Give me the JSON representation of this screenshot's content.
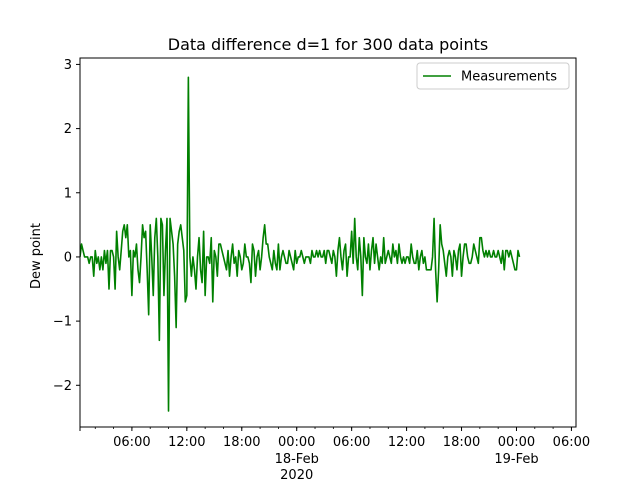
{
  "chart_data": {
    "type": "line",
    "title": "Data difference d=1 for 300 data points",
    "xlabel": "",
    "ylabel": "Dew point",
    "xlim": [
      "2020-02-17 00:20",
      "2020-02-19 06:30"
    ],
    "ylim": [
      -2.65,
      3.1
    ],
    "grid": false,
    "legend": {
      "placement": "upper right"
    },
    "x_ticks": [
      {
        "at": "2020-02-17 06:00",
        "label": "06:00",
        "sub": ""
      },
      {
        "at": "2020-02-17 12:00",
        "label": "12:00",
        "sub": ""
      },
      {
        "at": "2020-02-17 18:00",
        "label": "18:00",
        "sub": ""
      },
      {
        "at": "2020-02-18 00:00",
        "label": "00:00",
        "sub": "18-Feb\n2020"
      },
      {
        "at": "2020-02-18 06:00",
        "label": "06:00",
        "sub": ""
      },
      {
        "at": "2020-02-18 12:00",
        "label": "12:00",
        "sub": ""
      },
      {
        "at": "2020-02-18 18:00",
        "label": "18:00",
        "sub": ""
      },
      {
        "at": "2020-02-19 00:00",
        "label": "00:00",
        "sub": "19-Feb"
      },
      {
        "at": "2020-02-19 06:00",
        "label": "06:00",
        "sub": ""
      }
    ],
    "y_ticks": [
      {
        "value": 3,
        "label": "3"
      },
      {
        "value": 2,
        "label": "2"
      },
      {
        "value": 1,
        "label": "1"
      },
      {
        "value": 0,
        "label": "0"
      },
      {
        "value": -1,
        "label": "−1"
      },
      {
        "value": -2,
        "label": "−2"
      }
    ],
    "series": [
      {
        "name": "Measurements",
        "color": "#008000",
        "start": "2020-02-17 00:20",
        "interval_minutes": 10,
        "values": [
          0.0,
          0.2,
          0.1,
          0.0,
          0.0,
          0.0,
          -0.1,
          0.0,
          0.0,
          -0.3,
          0.1,
          -0.1,
          0.0,
          -0.2,
          0.0,
          -0.2,
          0.1,
          -0.1,
          0.1,
          -0.5,
          0.1,
          0.1,
          0.0,
          -0.5,
          0.4,
          0.0,
          -0.2,
          0.1,
          0.4,
          0.5,
          0.3,
          0.5,
          0.0,
          0.1,
          -0.6,
          0.1,
          0.0,
          0.2,
          -0.2,
          -0.4,
          0.0,
          0.5,
          0.3,
          0.4,
          -0.2,
          -0.9,
          0.5,
          0.0,
          -0.6,
          0.3,
          0.6,
          0.0,
          -1.3,
          0.6,
          0.5,
          -0.6,
          0.1,
          0.6,
          -2.4,
          0.6,
          0.4,
          0.2,
          -0.3,
          -1.1,
          0.2,
          0.4,
          0.5,
          0.3,
          0.1,
          -0.7,
          -0.6,
          2.8,
          0.0,
          -0.3,
          0.0,
          -0.2,
          -0.5,
          0.0,
          0.3,
          -0.2,
          -0.4,
          0.4,
          -0.6,
          0.0,
          0.0,
          -0.1,
          0.3,
          -0.7,
          0.1,
          0.0,
          -0.3,
          0.2,
          0.2,
          0.1,
          0.0,
          -0.1,
          -0.2,
          0.1,
          -0.3,
          0.0,
          0.2,
          -0.1,
          0.0,
          -0.3,
          0.1,
          0.0,
          -0.2,
          -0.1,
          0.2,
          0.0,
          0.0,
          -0.1,
          -0.4,
          0.2,
          0.1,
          -0.3,
          0.0,
          0.1,
          -0.2,
          0.0,
          0.3,
          0.5,
          0.2,
          0.2,
          0.0,
          -0.1,
          -0.2,
          0.1,
          -0.1,
          -0.2,
          0.2,
          -0.2,
          0.0,
          0.1,
          0.0,
          -0.1,
          -0.1,
          0.1,
          0.0,
          -0.1,
          -0.2,
          0.1,
          -0.1,
          0.0,
          0.0,
          0.1,
          0.0,
          -0.1,
          0.0,
          0.0,
          0.0,
          -0.1,
          0.1,
          0.0,
          0.0,
          0.1,
          0.0,
          0.1,
          0.0,
          0.0,
          0.1,
          -0.1,
          0.1,
          0.1,
          0.0,
          -0.1,
          0.1,
          0.0,
          -0.3,
          0.1,
          0.3,
          0.0,
          -0.2,
          0.1,
          0.2,
          -0.3,
          0.0,
          0.0,
          0.4,
          -0.1,
          0.6,
          0.0,
          -0.2,
          0.3,
          0.0,
          -0.6,
          0.3,
          0.0,
          -0.1,
          0.2,
          -0.2,
          0.1,
          0.3,
          -0.1,
          0.2,
          0.0,
          -0.2,
          0.0,
          -0.1,
          0.3,
          -0.1,
          0.0,
          0.1,
          0.0,
          -0.1,
          0.2,
          0.0,
          0.1,
          -0.1,
          0.2,
          0.0,
          -0.1,
          0.0,
          -0.1,
          0.0,
          0.0,
          -0.1,
          0.2,
          0.0,
          -0.1,
          -0.1,
          0.1,
          -0.2,
          0.0,
          0.1,
          -0.1,
          0.0,
          -0.2,
          -0.2,
          -0.2,
          -0.2,
          0.0,
          0.6,
          -0.2,
          -0.7,
          -0.2,
          0.5,
          0.2,
          0.1,
          -0.1,
          -0.3,
          0.0,
          0.1,
          0.0,
          -0.3,
          0.1,
          0.0,
          -0.2,
          0.1,
          0.2,
          -0.3,
          0.0,
          0.2,
          0.2,
          0.0,
          -0.1,
          -0.1,
          0.0,
          0.2,
          0.1,
          0.0,
          -0.1,
          0.3,
          0.3,
          0.1,
          0.0,
          0.1,
          0.0,
          0.1,
          0.0,
          0.0,
          0.1,
          0.0,
          0.0,
          0.1,
          0.0,
          -0.1,
          0.1,
          -0.2,
          0.1,
          0.1,
          0.0,
          0.1,
          0.0,
          -0.1,
          -0.2,
          -0.2,
          0.1,
          0.0
        ]
      }
    ]
  }
}
